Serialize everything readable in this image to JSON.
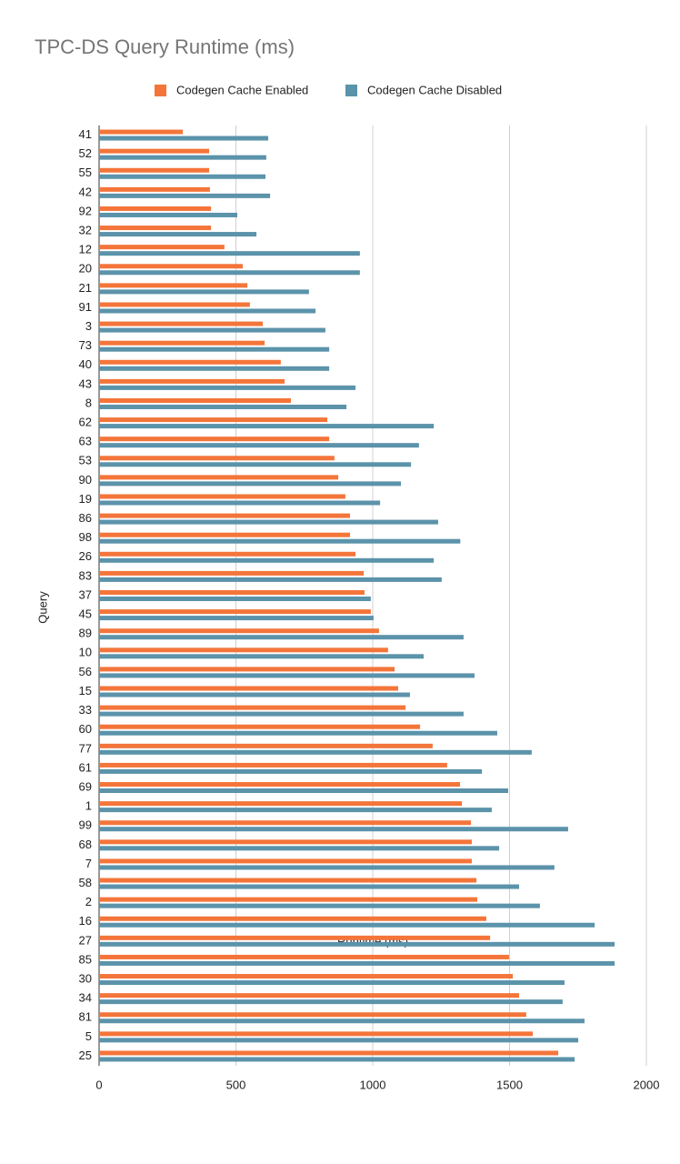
{
  "chart_data": {
    "type": "hbar",
    "title": "TPC-DS Query Runtime (ms)",
    "x_label": "Runtime (ms)",
    "y_label": "Query",
    "categories": [
      "41",
      "52",
      "55",
      "42",
      "92",
      "32",
      "12",
      "20",
      "21",
      "91",
      "3",
      "73",
      "40",
      "43",
      "8",
      "62",
      "63",
      "53",
      "90",
      "19",
      "86",
      "98",
      "26",
      "83",
      "37",
      "45",
      "89",
      "10",
      "56",
      "15",
      "33",
      "60",
      "77",
      "61",
      "69",
      "1",
      "99",
      "68",
      "7",
      "58",
      "2",
      "16",
      "27",
      "85",
      "30",
      "34",
      "81",
      "5",
      "25"
    ],
    "series": [
      {
        "name": "Codegen Cache Enabled",
        "color": "#f4753a",
        "values": [
          306,
          402,
          402,
          405,
          409,
          409,
          458,
          525,
          542,
          551,
          598,
          605,
          664,
          678,
          701,
          834,
          841,
          860,
          874,
          900,
          917,
          917,
          937,
          967,
          970,
          993,
          1023,
          1056,
          1080,
          1093,
          1120,
          1173,
          1219,
          1272,
          1319,
          1326,
          1359,
          1362,
          1362,
          1379,
          1382,
          1415,
          1429,
          1498,
          1512,
          1535,
          1561,
          1585,
          1678
        ]
      },
      {
        "name": "Codegen Cache Disabled",
        "color": "#5b93aa",
        "values": [
          618,
          611,
          608,
          625,
          505,
          575,
          953,
          953,
          767,
          791,
          827,
          841,
          841,
          937,
          904,
          1223,
          1169,
          1140,
          1103,
          1027,
          1239,
          1320,
          1223,
          1252,
          993,
          1003,
          1332,
          1186,
          1372,
          1136,
          1332,
          1455,
          1581,
          1399,
          1495,
          1435,
          1714,
          1462,
          1664,
          1535,
          1611,
          1811,
          1884,
          1884,
          1701,
          1694,
          1774,
          1751,
          1738
        ]
      }
    ],
    "xlim": [
      0,
      2000
    ],
    "xticks": [
      0,
      500,
      1000,
      1500,
      2000
    ],
    "grid": true,
    "legend": "top"
  }
}
